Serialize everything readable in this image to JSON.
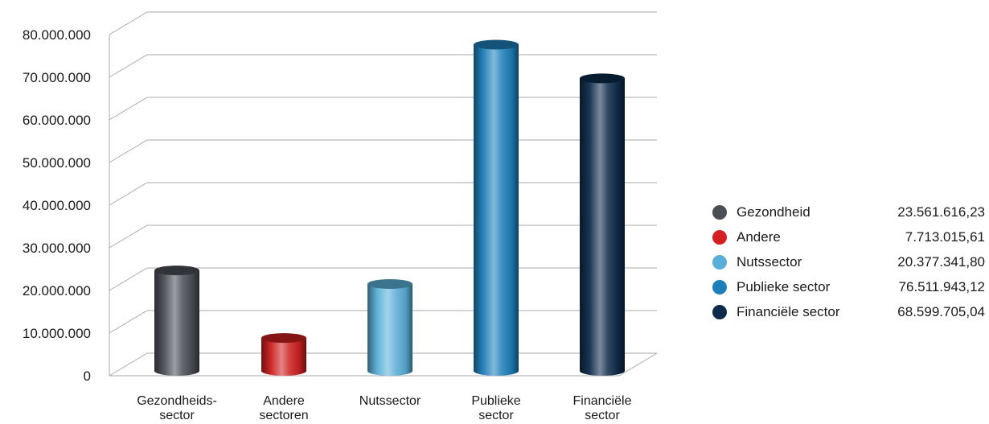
{
  "chart_data": {
    "type": "bar",
    "categories": [
      [
        "Gezondheids-",
        "sector"
      ],
      [
        "Andere",
        "sectoren"
      ],
      [
        "Nutssector"
      ],
      [
        "Publieke",
        "sector"
      ],
      [
        "Financiële",
        "sector"
      ]
    ],
    "values": [
      23561616.23,
      7713015.61,
      20377341.8,
      76511943.12,
      68599705.04
    ],
    "y_ticks": [
      "0",
      "10.000.000",
      "20.000.000",
      "30.000.000",
      "40.000.000",
      "50.000.000",
      "60.000.000",
      "70.000.000",
      "80.000.000"
    ],
    "ylim": [
      0,
      80000000
    ],
    "grid": true,
    "style": "3d-cylinder",
    "legend_position": "right",
    "colors": [
      "#4a4f55",
      "#cc1f1f",
      "#5aafd8",
      "#1d7fba",
      "#0d2b4a"
    ]
  },
  "legend": {
    "items": [
      {
        "label": "Gezondheid",
        "value": "23.561.616,23",
        "color": "#4a4f55"
      },
      {
        "label": "Andere",
        "value": "7.713.015,61",
        "color": "#d42020"
      },
      {
        "label": "Nutssector",
        "value": "20.377.341,80",
        "color": "#5aafd8"
      },
      {
        "label": "Publieke sector",
        "value": "76.511.943,12",
        "color": "#1d7fba"
      },
      {
        "label": "Financiële sector",
        "value": "68.599.705,04",
        "color": "#0d2b4a"
      }
    ]
  }
}
